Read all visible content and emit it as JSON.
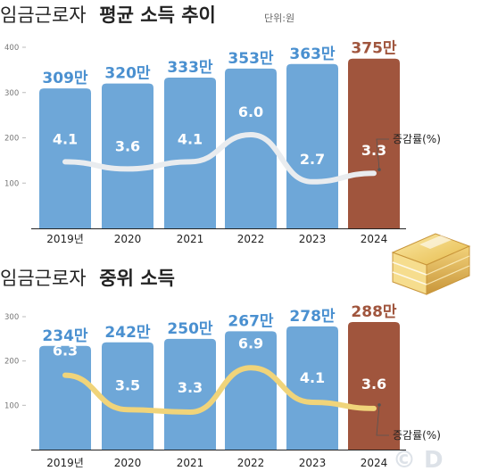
{
  "chart_data": [
    {
      "type": "bar",
      "title_normal": "임금근로자",
      "title_bold": "평균 소득 추이",
      "unit": "단위:원",
      "categories": [
        "2019년",
        "2020",
        "2021",
        "2022",
        "2023",
        "2024"
      ],
      "value_labels": [
        "309만",
        "320만",
        "333만",
        "353만",
        "363만",
        "375만"
      ],
      "values": [
        309,
        320,
        333,
        353,
        363,
        375
      ],
      "yticks": [
        "100",
        "200",
        "300",
        "400"
      ],
      "ylim": [
        0,
        400
      ],
      "line_series": {
        "name": "증감률(%)",
        "values": [
          4.1,
          3.6,
          4.1,
          6.0,
          2.7,
          3.3
        ],
        "labels": [
          "4.1",
          "3.6",
          "4.1",
          "6.0",
          "2.7",
          "3.3"
        ]
      },
      "colors": {
        "bar": "#6ea7d8",
        "highlight_bar": "#a0553d",
        "line": "#e9ecef"
      }
    },
    {
      "type": "bar",
      "title_normal": "임금근로자",
      "title_bold": "중위 소득",
      "categories": [
        "2019년",
        "2020",
        "2021",
        "2022",
        "2023",
        "2024"
      ],
      "value_labels": [
        "234만",
        "242만",
        "250만",
        "267만",
        "278만",
        "288만"
      ],
      "values": [
        234,
        242,
        250,
        267,
        278,
        288
      ],
      "yticks": [
        "100",
        "200",
        "300"
      ],
      "ylim": [
        0,
        300
      ],
      "line_series": {
        "name": "증감률(%)",
        "values": [
          6.3,
          3.5,
          3.3,
          6.9,
          4.1,
          3.6
        ],
        "labels": [
          "6.3",
          "3.5",
          "3.3",
          "6.9",
          "4.1",
          "3.6"
        ]
      },
      "colors": {
        "bar": "#6ea7d8",
        "highlight_bar": "#a0553d",
        "line": "#f0d47a"
      }
    }
  ],
  "watermark": "© D"
}
